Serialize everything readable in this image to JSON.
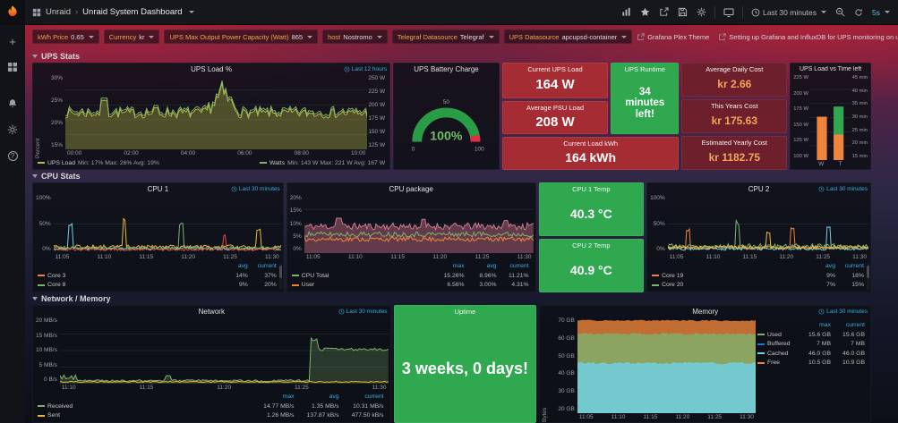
{
  "glyphs": {
    "plus": "+",
    "help": "?",
    "crumb_sep": "›"
  },
  "navbar": {
    "folder": "Unraid",
    "title": "Unraid System Dashboard",
    "time_range": "Last 30 minutes",
    "refresh_interval": "5s"
  },
  "submenu": {
    "variables": [
      {
        "label": "kWh Price",
        "value": "0.65"
      },
      {
        "label": "Currency",
        "value": "kr"
      },
      {
        "label": "UPS Max Output Power Capacity (Watt)",
        "value": "865"
      },
      {
        "label": "host",
        "value": "Nostromo"
      },
      {
        "label": "Telegraf Datasource",
        "value": "Telegraf"
      },
      {
        "label": "UPS Datasource",
        "value": "apcupsd-container"
      }
    ],
    "links": [
      {
        "label": "Grafana Plex Theme"
      },
      {
        "label": "Setting up Grafana and InfluxDB for UPS monitoring on unRAID"
      }
    ]
  },
  "rows": [
    {
      "title": "UPS Stats"
    },
    {
      "title": "CPU Stats"
    },
    {
      "title": "Network / Memory"
    }
  ],
  "panels": {
    "ups_load": {
      "title": "UPS Load %",
      "time_info": "Last 12 hours",
      "ylabel": "Percent",
      "y_left": [
        "30%",
        "25%",
        "20%",
        "15%"
      ],
      "y_right": [
        "250 W",
        "225 W",
        "200 W",
        "175 W",
        "150 W",
        "125 W"
      ],
      "x": [
        "00:00",
        "02:00",
        "04:00",
        "06:00",
        "08:00",
        "10:00"
      ],
      "legend": [
        {
          "name": "UPS Load",
          "stats": "Min: 17% Max: 26% Avg: 19%",
          "color": "#b9bf45"
        },
        {
          "name": "Watts",
          "stats": "Min: 143 W Max: 221 W Avg: 167 W",
          "color": "#7eb26d"
        }
      ]
    },
    "battery": {
      "title": "UPS Battery Charge",
      "value": "100%",
      "min": "0",
      "mid": "50",
      "max": "100"
    },
    "current_load": {
      "title": "Current UPS Load",
      "value": "164 W"
    },
    "runtime": {
      "title": "UPS Runtime",
      "value": "34 minutes left!"
    },
    "avg_psu": {
      "title": "Average PSU Load",
      "value": "208 W"
    },
    "load_kwh": {
      "title": "Current Load kWh",
      "value": "164 kWh"
    },
    "daily_cost": {
      "title": "Average Daily Cost",
      "value": "kr 2.66"
    },
    "year_cost": {
      "title": "This Years Cost",
      "value": "kr 175.63"
    },
    "est_cost": {
      "title": "Estimated Yearly Cost",
      "value": "kr 1182.75"
    },
    "load_vs_time": {
      "title": "UPS Load vs Time left",
      "y_left": [
        "225 W",
        "200 W",
        "175 W",
        "150 W",
        "125 W",
        "100 W"
      ],
      "y_right": [
        "45 min",
        "40 min",
        "35 min",
        "30 min",
        "25 min",
        "20 min",
        "15 min"
      ],
      "x": [
        "W",
        "T"
      ]
    },
    "cpu1": {
      "title": "CPU 1",
      "time_info": "Last 30 minutes",
      "y": [
        "100%",
        "50%",
        "0%"
      ],
      "x": [
        "11:05",
        "11:10",
        "11:15",
        "11:20",
        "11:25",
        "11:30"
      ],
      "cols": [
        "avg",
        "current"
      ],
      "series": [
        {
          "name": "Core 3",
          "color": "#ef843c",
          "v1": "14%",
          "v2": "37%"
        },
        {
          "name": "Core 8",
          "color": "#7eb26d",
          "v1": "9%",
          "v2": "20%"
        }
      ]
    },
    "cpu_pkg": {
      "title": "CPU package",
      "y": [
        "20%",
        "15%",
        "10%",
        "5%",
        "0%"
      ],
      "x": [
        "11:05",
        "11:10",
        "11:15",
        "11:20",
        "11:25",
        "11:30"
      ],
      "cols": [
        "max",
        "avg",
        "current"
      ],
      "series": [
        {
          "name": "CPU Total",
          "color": "#7eb26d",
          "v1": "15.26%",
          "v2": "8.96%",
          "v3": "11.21%"
        },
        {
          "name": "User",
          "color": "#ef843c",
          "v1": "6.56%",
          "v2": "3.00%",
          "v3": "4.31%"
        }
      ]
    },
    "cpu1_temp": {
      "title": "CPU 1 Temp",
      "value": "40.3 °C"
    },
    "cpu2_temp": {
      "title": "CPU 2 Temp",
      "value": "40.9 °C"
    },
    "cpu2": {
      "title": "CPU 2",
      "time_info": "Last 30 minutes",
      "y": [
        "100%",
        "50%",
        "0%"
      ],
      "x": [
        "11:05",
        "11:10",
        "11:15",
        "11:20",
        "11:25",
        "11:30"
      ],
      "cols": [
        "avg",
        "current"
      ],
      "series": [
        {
          "name": "Core 19",
          "color": "#ef843c",
          "v1": "9%",
          "v2": "18%"
        },
        {
          "name": "Core 20",
          "color": "#7eb26d",
          "v1": "7%",
          "v2": "15%"
        }
      ]
    },
    "network": {
      "title": "Network",
      "time_info": "Last 30 minutes",
      "y": [
        "20 MB/s",
        "15 MB/s",
        "10 MB/s",
        "5 MB/s",
        "0 B/s"
      ],
      "x": [
        "11:10",
        "11:15",
        "11:20",
        "11:25",
        "11:30"
      ],
      "cols": [
        "max",
        "avg",
        "current"
      ],
      "series": [
        {
          "name": "Received",
          "color": "#7eb26d",
          "v1": "14.77 MB/s",
          "v2": "1.35 MB/s",
          "v3": "10.31 MB/s"
        },
        {
          "name": "Sent",
          "color": "#eab839",
          "v1": "1.26 MB/s",
          "v2": "137.87 kB/s",
          "v3": "477.50 kB/s"
        }
      ]
    },
    "uptime": {
      "title": "Uptime",
      "value": "3 weeks, 0 days!"
    },
    "memory": {
      "title": "Memory",
      "time_info": "Last 30 minutes",
      "ylabel": "Bytes",
      "y": [
        "70 GB",
        "60 GB",
        "50 GB",
        "40 GB",
        "30 GB",
        "20 GB"
      ],
      "x": [
        "11:05",
        "11:10",
        "11:15",
        "11:20",
        "11:25",
        "11:30"
      ],
      "cols": [
        "max",
        "current"
      ],
      "series": [
        {
          "name": "Used",
          "color": "#7eb26d",
          "v1": "15.6 GB",
          "v2": "15.6 GB"
        },
        {
          "name": "Buffered",
          "color": "#1f78c1",
          "v1": "7 MB",
          "v2": "7 MB"
        },
        {
          "name": "Cached",
          "color": "#6ed0e0",
          "v1": "46.0 GB",
          "v2": "46.0 GB"
        },
        {
          "name": "Free",
          "color": "#ef843c",
          "v1": "10.5 GB",
          "v2": "10.9 GB"
        }
      ]
    }
  }
}
